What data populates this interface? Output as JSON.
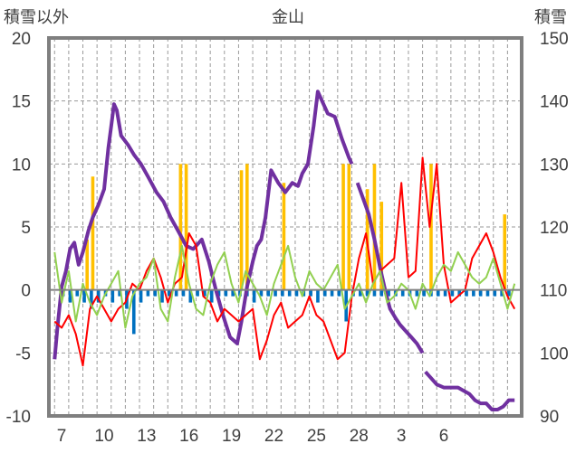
{
  "chart_data": {
    "type": "line",
    "title": "金山",
    "y_left_label": "積雪以外",
    "y_right_label": "積雪",
    "y_left_ticks": [
      "20",
      "15",
      "10",
      "5",
      "0",
      "-5",
      "-10"
    ],
    "y_right_ticks": [
      "150",
      "140",
      "130",
      "120",
      "110",
      "100",
      "90"
    ],
    "x_ticks": [
      "7",
      "10",
      "13",
      "16",
      "19",
      "22",
      "25",
      "28",
      "3",
      "6"
    ],
    "y_left_range": [
      -10,
      20
    ],
    "y_right_range": [
      90,
      150
    ],
    "grid": true,
    "series": [
      {
        "name": "",
        "axis": "right",
        "values": [
          [
            0.0,
            99.0
          ],
          [
            0.2,
            104.0
          ],
          [
            0.5,
            110.5
          ],
          [
            0.8,
            113.0
          ],
          [
            1.1,
            116.5
          ],
          [
            1.4,
            117.5
          ],
          [
            1.7,
            114.0
          ],
          [
            2.0,
            116.0
          ],
          [
            2.4,
            119.5
          ],
          [
            2.7,
            121.5
          ],
          [
            3.1,
            123.5
          ],
          [
            3.5,
            126.0
          ],
          [
            3.8,
            132.5
          ],
          [
            4.0,
            136.0
          ],
          [
            4.2,
            139.5
          ],
          [
            4.4,
            138.5
          ],
          [
            4.7,
            134.5
          ],
          [
            5.2,
            133.0
          ],
          [
            5.6,
            131.5
          ],
          [
            6.1,
            130.0
          ],
          [
            6.6,
            128.0
          ],
          [
            7.2,
            125.5
          ],
          [
            7.7,
            124.0
          ],
          [
            8.2,
            121.5
          ],
          [
            8.7,
            119.5
          ],
          [
            9.3,
            117.0
          ],
          [
            9.8,
            116.5
          ],
          [
            10.4,
            118.0
          ],
          [
            10.9,
            114.5
          ],
          [
            11.4,
            110.0
          ],
          [
            11.9,
            106.0
          ],
          [
            12.4,
            102.5
          ],
          [
            12.9,
            101.5
          ],
          [
            13.2,
            105.0
          ],
          [
            13.6,
            110.5
          ],
          [
            14.0,
            114.5
          ],
          [
            14.3,
            117.0
          ],
          [
            14.6,
            118.0
          ],
          [
            14.9,
            121.5
          ],
          [
            15.3,
            129.0
          ],
          [
            15.8,
            127.0
          ],
          [
            16.3,
            125.5
          ],
          [
            16.8,
            127.0
          ],
          [
            17.2,
            126.5
          ],
          [
            17.5,
            128.5
          ],
          [
            17.9,
            130.0
          ],
          [
            18.3,
            136.0
          ],
          [
            18.6,
            141.5
          ],
          [
            18.9,
            140.0
          ],
          [
            19.3,
            138.0
          ],
          [
            19.8,
            137.5
          ],
          [
            20.3,
            134.0
          ],
          [
            20.8,
            131.0
          ],
          [
            21.0,
            130.0
          ]
        ]
      },
      {
        "name": "",
        "axis": "right",
        "values": [
          [
            21.4,
            127.0
          ],
          [
            21.8,
            124.5
          ],
          [
            22.2,
            122.0
          ],
          [
            22.6,
            118.0
          ],
          [
            23.0,
            113.5
          ],
          [
            23.4,
            109.5
          ],
          [
            23.7,
            107.0
          ],
          [
            24.1,
            105.5
          ],
          [
            24.4,
            104.5
          ],
          [
            24.8,
            103.5
          ],
          [
            25.2,
            102.5
          ],
          [
            25.6,
            101.5
          ],
          [
            26.0,
            100.0
          ]
        ]
      },
      {
        "name": "",
        "axis": "right",
        "values": [
          [
            26.2,
            97.0
          ],
          [
            26.6,
            96.0
          ],
          [
            27.0,
            95.0
          ],
          [
            27.5,
            94.5
          ],
          [
            28.0,
            94.5
          ],
          [
            28.5,
            94.5
          ],
          [
            28.9,
            94.0
          ],
          [
            29.3,
            93.5
          ],
          [
            29.7,
            92.5
          ],
          [
            30.1,
            92.0
          ],
          [
            30.5,
            92.0
          ],
          [
            30.9,
            91.0
          ],
          [
            31.3,
            91.0
          ],
          [
            31.7,
            91.5
          ],
          [
            32.1,
            92.5
          ],
          [
            32.5,
            92.5
          ]
        ]
      },
      {
        "name": "",
        "axis": "left",
        "values": [
          [
            0.0,
            -2.5
          ],
          [
            0.5,
            -3.0
          ],
          [
            1.0,
            -2.0
          ],
          [
            1.5,
            -3.5
          ],
          [
            2.0,
            -6.0
          ],
          [
            2.5,
            -1.5
          ],
          [
            3.0,
            -0.5
          ],
          [
            3.5,
            -1.5
          ],
          [
            4.0,
            -2.5
          ],
          [
            4.5,
            -1.5
          ],
          [
            5.0,
            -1.0
          ],
          [
            5.5,
            0.5
          ],
          [
            6.0,
            0.0
          ],
          [
            6.5,
            1.5
          ],
          [
            7.0,
            2.5
          ],
          [
            7.5,
            1.0
          ],
          [
            8.0,
            -1.0
          ],
          [
            8.5,
            0.5
          ],
          [
            9.0,
            1.0
          ],
          [
            9.5,
            4.5
          ],
          [
            10.0,
            3.5
          ],
          [
            10.5,
            -0.5
          ],
          [
            11.0,
            -1.0
          ],
          [
            11.5,
            -2.5
          ],
          [
            12.0,
            -1.5
          ],
          [
            12.5,
            -2.0
          ],
          [
            13.0,
            -2.5
          ],
          [
            13.5,
            -2.0
          ],
          [
            14.0,
            -1.5
          ],
          [
            14.5,
            -5.5
          ],
          [
            15.0,
            -4.0
          ],
          [
            15.5,
            -2.0
          ],
          [
            16.0,
            -1.0
          ],
          [
            16.5,
            -3.0
          ],
          [
            17.0,
            -2.5
          ],
          [
            17.5,
            -2.0
          ],
          [
            18.0,
            -0.5
          ],
          [
            18.5,
            -2.0
          ],
          [
            19.0,
            -2.5
          ],
          [
            19.5,
            -4.0
          ],
          [
            20.0,
            -5.5
          ],
          [
            20.5,
            -5.0
          ],
          [
            21.0,
            -0.5
          ],
          [
            21.5,
            2.5
          ],
          [
            22.0,
            4.5
          ],
          [
            22.5,
            0.5
          ],
          [
            23.0,
            1.5
          ],
          [
            23.5,
            2.0
          ],
          [
            24.0,
            2.5
          ],
          [
            24.5,
            8.5
          ],
          [
            25.0,
            1.0
          ],
          [
            25.5,
            1.5
          ],
          [
            26.0,
            10.5
          ],
          [
            26.5,
            5.0
          ],
          [
            27.0,
            10.0
          ],
          [
            27.5,
            2.0
          ],
          [
            28.0,
            -1.0
          ],
          [
            28.5,
            -0.5
          ],
          [
            29.0,
            0.0
          ],
          [
            29.5,
            2.5
          ],
          [
            30.0,
            3.5
          ],
          [
            30.5,
            4.5
          ],
          [
            31.0,
            3.0
          ],
          [
            31.5,
            1.0
          ],
          [
            32.0,
            -0.5
          ],
          [
            32.5,
            -1.5
          ]
        ]
      },
      {
        "name": "",
        "axis": "left",
        "values": [
          [
            0.0,
            3.0
          ],
          [
            0.5,
            -1.0
          ],
          [
            1.0,
            1.5
          ],
          [
            1.5,
            -2.5
          ],
          [
            2.0,
            0.5
          ],
          [
            2.5,
            -1.0
          ],
          [
            3.0,
            -2.0
          ],
          [
            3.5,
            -0.5
          ],
          [
            4.0,
            0.5
          ],
          [
            4.5,
            1.5
          ],
          [
            5.0,
            -3.0
          ],
          [
            5.5,
            -0.5
          ],
          [
            6.0,
            0.5
          ],
          [
            6.5,
            1.0
          ],
          [
            7.0,
            2.5
          ],
          [
            7.5,
            -1.5
          ],
          [
            8.0,
            -2.5
          ],
          [
            8.5,
            1.0
          ],
          [
            9.0,
            3.5
          ],
          [
            9.5,
            0.5
          ],
          [
            10.0,
            -1.5
          ],
          [
            10.5,
            -2.0
          ],
          [
            11.0,
            0.5
          ],
          [
            11.5,
            2.0
          ],
          [
            12.0,
            3.0
          ],
          [
            12.5,
            0.5
          ],
          [
            13.0,
            -1.0
          ],
          [
            13.5,
            1.5
          ],
          [
            14.0,
            0.5
          ],
          [
            14.5,
            -0.5
          ],
          [
            15.0,
            -2.0
          ],
          [
            15.5,
            0.5
          ],
          [
            16.0,
            2.0
          ],
          [
            16.5,
            3.5
          ],
          [
            17.0,
            1.0
          ],
          [
            17.5,
            -0.5
          ],
          [
            18.0,
            1.5
          ],
          [
            18.5,
            0.5
          ],
          [
            19.0,
            0.0
          ],
          [
            19.5,
            1.0
          ],
          [
            20.0,
            2.0
          ],
          [
            20.5,
            -1.5
          ],
          [
            21.0,
            -0.5
          ],
          [
            21.5,
            0.5
          ],
          [
            22.0,
            -1.0
          ],
          [
            22.5,
            0.5
          ],
          [
            23.0,
            1.5
          ],
          [
            23.5,
            -1.0
          ],
          [
            24.0,
            -0.5
          ],
          [
            24.5,
            0.5
          ],
          [
            25.0,
            0.0
          ],
          [
            25.5,
            -1.5
          ],
          [
            26.0,
            0.5
          ],
          [
            26.5,
            -0.5
          ],
          [
            27.0,
            1.0
          ],
          [
            27.5,
            2.0
          ],
          [
            28.0,
            1.5
          ],
          [
            28.5,
            3.0
          ],
          [
            29.0,
            2.0
          ],
          [
            29.5,
            1.0
          ],
          [
            30.0,
            0.5
          ],
          [
            30.5,
            1.0
          ],
          [
            31.0,
            2.5
          ],
          [
            31.5,
            0.5
          ],
          [
            32.0,
            -1.5
          ],
          [
            32.5,
            0.5
          ]
        ]
      },
      {
        "name": "",
        "axis": "left",
        "values": [
          [
            2.3,
            4.0
          ],
          [
            2.7,
            9.0
          ],
          [
            8.9,
            10.0
          ],
          [
            9.3,
            10.0
          ],
          [
            13.2,
            9.5
          ],
          [
            13.6,
            10.0
          ],
          [
            16.2,
            8.5
          ],
          [
            20.4,
            10.0
          ],
          [
            20.8,
            10.0
          ],
          [
            22.1,
            8.0
          ],
          [
            22.6,
            10.0
          ],
          [
            23.1,
            7.0
          ],
          [
            26.6,
            10.0
          ],
          [
            31.8,
            6.0
          ]
        ]
      },
      {
        "name": "",
        "axis": "left",
        "values": [
          [
            0.6,
            -0.5
          ],
          [
            1.1,
            -1.0
          ],
          [
            1.6,
            -0.5
          ],
          [
            2.1,
            -1.0
          ],
          [
            2.6,
            -1.5
          ],
          [
            3.1,
            -1.0
          ],
          [
            3.6,
            -0.5
          ],
          [
            4.1,
            -1.0
          ],
          [
            4.6,
            -0.5
          ],
          [
            5.1,
            -1.5
          ],
          [
            5.6,
            -3.5
          ],
          [
            6.1,
            -1.0
          ],
          [
            6.6,
            -0.5
          ],
          [
            7.1,
            -0.5
          ],
          [
            7.6,
            -1.0
          ],
          [
            8.1,
            -0.5
          ],
          [
            8.6,
            -0.5
          ],
          [
            9.1,
            -0.5
          ],
          [
            9.6,
            -1.0
          ],
          [
            10.1,
            -0.5
          ],
          [
            10.6,
            -0.5
          ],
          [
            11.1,
            -1.0
          ],
          [
            11.6,
            -0.5
          ],
          [
            12.1,
            -0.5
          ],
          [
            12.6,
            -0.5
          ],
          [
            13.1,
            -0.5
          ],
          [
            13.6,
            -0.5
          ],
          [
            14.1,
            -1.0
          ],
          [
            14.6,
            -0.5
          ],
          [
            15.1,
            -0.5
          ],
          [
            15.6,
            -0.5
          ],
          [
            16.1,
            -0.5
          ],
          [
            16.6,
            -0.5
          ],
          [
            17.1,
            -0.5
          ],
          [
            17.6,
            -0.5
          ],
          [
            18.1,
            -0.5
          ],
          [
            18.6,
            -1.0
          ],
          [
            19.1,
            -0.5
          ],
          [
            19.6,
            -0.5
          ],
          [
            20.1,
            -0.5
          ],
          [
            20.6,
            -2.5
          ],
          [
            21.1,
            -0.5
          ],
          [
            21.6,
            -0.5
          ],
          [
            22.1,
            -0.5
          ],
          [
            22.6,
            -0.5
          ],
          [
            23.1,
            -0.5
          ],
          [
            23.6,
            -0.5
          ],
          [
            24.1,
            -0.5
          ],
          [
            24.6,
            -0.5
          ],
          [
            25.1,
            -0.5
          ],
          [
            25.6,
            -0.5
          ],
          [
            26.1,
            -0.5
          ],
          [
            26.6,
            -0.5
          ],
          [
            27.1,
            -0.5
          ],
          [
            27.6,
            -0.5
          ],
          [
            28.1,
            -0.5
          ],
          [
            28.6,
            -0.5
          ],
          [
            29.1,
            -0.5
          ],
          [
            29.6,
            -0.5
          ],
          [
            30.1,
            -0.5
          ],
          [
            30.6,
            -0.5
          ],
          [
            31.1,
            -0.5
          ],
          [
            31.6,
            -0.5
          ],
          [
            32.1,
            -0.5
          ]
        ]
      }
    ]
  },
  "colors": {
    "grid": "#9a9a9a",
    "frame": "#7f7f7f",
    "text": "#404040",
    "series": [
      "#7030a0",
      "#7030a0",
      "#7030a0",
      "#ff0000",
      "#92d050",
      "#ffc000",
      "#0070c0"
    ],
    "series_kind": [
      "line",
      "line",
      "line",
      "line",
      "line",
      "bar",
      "bar"
    ]
  }
}
